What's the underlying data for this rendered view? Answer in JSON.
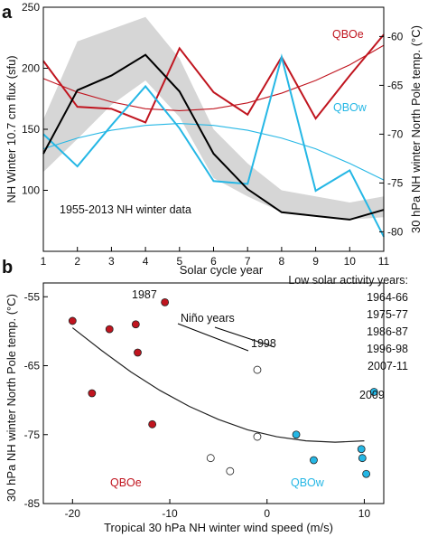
{
  "chart_data": [
    {
      "panel_label": "a",
      "type": "line",
      "x": [
        1,
        2,
        3,
        4,
        5,
        6,
        7,
        8,
        9,
        10,
        11
      ],
      "xlabel": "Solar cycle year",
      "ylabel": "NH Winter 10.7 cm flux (sfu)",
      "ylabel_right": "30 hPa NH winter North Pole temp. (°C)",
      "xlim": [
        1,
        11
      ],
      "ylim": [
        50,
        250
      ],
      "ylim_right": [
        -82,
        -57
      ],
      "xticks": [
        "1",
        "2",
        "3",
        "4",
        "5",
        "6",
        "7",
        "8",
        "9",
        "10",
        "11"
      ],
      "yticks": [
        "100",
        "150",
        "200",
        "250"
      ],
      "yticks_right": [
        "-80",
        "-75",
        "-70",
        "-65",
        "-60"
      ],
      "annotation": "1955-2013 NH winter data",
      "band": {
        "lower": [
          115,
          142,
          170,
          190,
          160,
          110,
          95,
          82,
          80,
          76,
          78
        ],
        "upper": [
          158,
          222,
          232,
          242,
          208,
          150,
          122,
          100,
          95,
          90,
          95
        ]
      },
      "series": [
        {
          "name": "",
          "axis": "left",
          "color": "#000000",
          "values": [
            130,
            182,
            194,
            211,
            181,
            130,
            101,
            82,
            79,
            76,
            84
          ]
        },
        {
          "name": "QBOe",
          "axis": "right",
          "color": "#c0151f",
          "values": [
            -62.5,
            -67.2,
            -67.4,
            -68.8,
            -61.2,
            -65.7,
            -68.0,
            -62.1,
            -68.4,
            -64.0,
            -59.8
          ],
          "fit": [
            -64.3,
            -65.7,
            -66.7,
            -67.4,
            -67.6,
            -67.4,
            -66.8,
            -65.8,
            -64.5,
            -62.9,
            -60.9
          ]
        },
        {
          "name": "QBOw",
          "axis": "right",
          "color": "#25b7e5",
          "values": [
            -70.0,
            -73.3,
            -69.1,
            -65.1,
            -69.4,
            -74.8,
            -75.1,
            -62.1,
            -75.8,
            -73.7,
            -80.5
          ],
          "fit": [
            -71.5,
            -70.4,
            -69.6,
            -69.1,
            -68.9,
            -69.1,
            -69.6,
            -70.4,
            -71.5,
            -73.0,
            -74.7
          ]
        }
      ]
    },
    {
      "panel_label": "b",
      "type": "scatter",
      "xlabel": "Tropical 30 hPa NH winter wind speed (m/s)",
      "ylabel": "30 hPa NH winter North Pole temp. (°C)",
      "xlim": [
        -23,
        12
      ],
      "ylim": [
        -85,
        -53
      ],
      "xticks": [
        "-20",
        "-10",
        "0",
        "10"
      ],
      "yticks": [
        "-55",
        "-65",
        "-75",
        "-85"
      ],
      "legend_title": "Low solar activity years:",
      "legend_items": [
        "1964-66",
        "1975-77",
        "1986-87",
        "1996-98",
        "2007-11"
      ],
      "group_labels": {
        "qboe": "QBOe",
        "qbow": "QBOw",
        "nino": "Niño years"
      },
      "point_labels": {
        "p1987": "1987",
        "p1998": "1998",
        "p2009": "2009"
      },
      "fit_curve": {
        "x": [
          -20,
          -17,
          -14,
          -11,
          -8,
          -5,
          -2,
          1,
          4,
          7,
          10
        ],
        "y": [
          -59.5,
          -62.8,
          -65.9,
          -68.6,
          -70.9,
          -72.8,
          -74.3,
          -75.3,
          -75.9,
          -76.1,
          -75.9
        ]
      },
      "points": [
        {
          "x": -20.0,
          "y": -58.5,
          "group": "qboe",
          "color": "#c0151f"
        },
        {
          "x": -18.0,
          "y": -69.0,
          "group": "qboe",
          "color": "#c0151f"
        },
        {
          "x": -16.2,
          "y": -59.7,
          "group": "qboe",
          "color": "#c0151f"
        },
        {
          "x": -13.5,
          "y": -59.0,
          "group": "qboe",
          "color": "#c0151f"
        },
        {
          "x": -13.3,
          "y": -63.1,
          "group": "qboe",
          "color": "#c0151f"
        },
        {
          "x": -11.8,
          "y": -73.5,
          "group": "qboe",
          "color": "#c0151f"
        },
        {
          "x": -10.5,
          "y": -55.8,
          "group": "qboe",
          "color": "#c0151f"
        },
        {
          "x": -5.8,
          "y": -78.4,
          "group": "neutral",
          "color": "#ffffff"
        },
        {
          "x": -3.8,
          "y": -80.3,
          "group": "neutral",
          "color": "#ffffff"
        },
        {
          "x": -1.0,
          "y": -65.6,
          "group": "neutral",
          "color": "#ffffff"
        },
        {
          "x": -1.0,
          "y": -75.3,
          "group": "neutral",
          "color": "#ffffff"
        },
        {
          "x": 3.0,
          "y": -75.0,
          "group": "qbow",
          "color": "#25b7e5"
        },
        {
          "x": 4.8,
          "y": -78.7,
          "group": "qbow",
          "color": "#25b7e5"
        },
        {
          "x": 9.7,
          "y": -77.1,
          "group": "qbow",
          "color": "#25b7e5"
        },
        {
          "x": 9.8,
          "y": -78.4,
          "group": "qbow",
          "color": "#25b7e5"
        },
        {
          "x": 10.2,
          "y": -80.7,
          "group": "qbow",
          "color": "#25b7e5"
        },
        {
          "x": 11.0,
          "y": -68.8,
          "group": "qbow",
          "color": "#25b7e5"
        }
      ]
    }
  ]
}
